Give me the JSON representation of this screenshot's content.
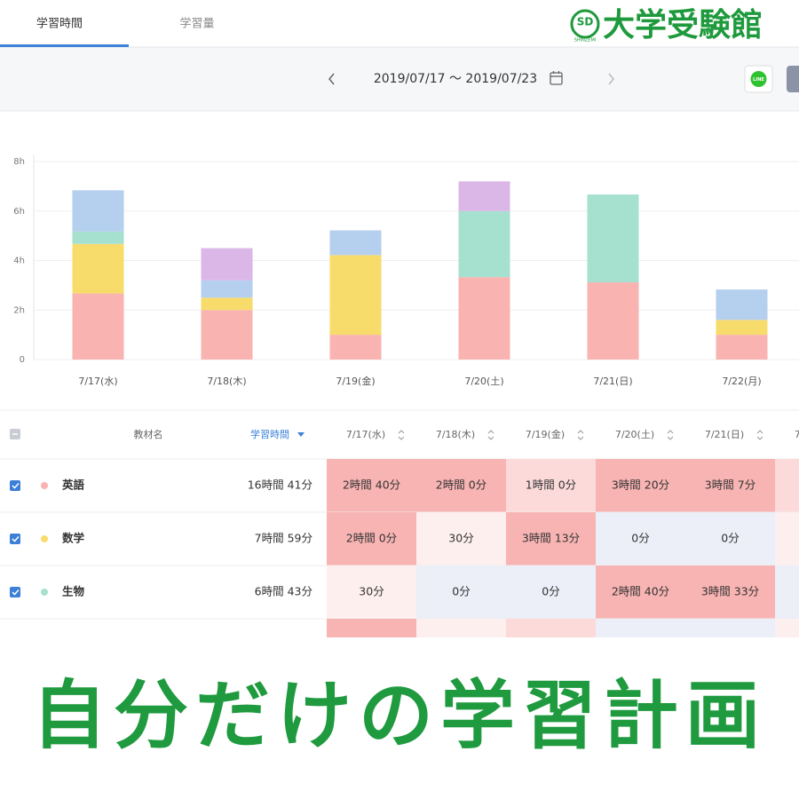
{
  "tabs": [
    "学習時間",
    "学習量"
  ],
  "logo": {
    "emblem": "SD",
    "emblem_sub": "SHINZEMI",
    "brand": "大学受験館"
  },
  "toolbar": {
    "date_range": "2019/07/17 〜 2019/07/23",
    "share_button": "LINE"
  },
  "chart_data": {
    "type": "bar",
    "stacked": true,
    "categories": [
      "7/17(水)",
      "7/18(木)",
      "7/19(金)",
      "7/20(土)",
      "7/21(日)",
      "7/22(月)"
    ],
    "series": [
      {
        "name": "英語",
        "color": "#f9b3b1",
        "values": [
          2.67,
          2.0,
          1.0,
          3.33,
          3.12,
          1.0
        ]
      },
      {
        "name": "数学",
        "color": "#f8dc6b",
        "values": [
          2.0,
          0.5,
          3.22,
          0,
          0,
          0.6
        ]
      },
      {
        "name": "生物",
        "color": "#a6e0ce",
        "values": [
          0.5,
          0,
          0,
          2.67,
          3.55,
          0
        ]
      },
      {
        "color": "#b5cfee",
        "values": [
          1.67,
          0.7,
          1.0,
          0,
          0,
          1.23
        ]
      },
      {
        "color": "#dbb7e8",
        "values": [
          0,
          1.3,
          0,
          1.2,
          0,
          0
        ]
      }
    ],
    "ylim": [
      0,
      8
    ],
    "yticks": [
      0,
      {
        "value": 2,
        "label": "2h"
      },
      {
        "value": 4,
        "label": "4h"
      },
      {
        "value": 6,
        "label": "6h"
      },
      {
        "value": 8,
        "label": "8h"
      }
    ],
    "grid": true
  },
  "table": {
    "headers": [
      "教材名",
      "学習時間"
    ],
    "rows": [
      {
        "total": "16時間 41分",
        "cells": [
          "2時間 40分",
          "2時間 0分",
          "1時間 0分",
          "3時間 20分",
          "3時間 7分"
        ]
      },
      {
        "total": "7時間 59分",
        "cells": [
          "2時間 0分",
          "30分",
          "3時間 13分",
          "0分",
          "0分"
        ]
      },
      {
        "total": "6時間 43分",
        "cells": [
          "30分",
          "0分",
          "0分",
          "2時間 40分",
          "3時間 33分"
        ]
      }
    ]
  },
  "banner": "自分だけの学習計画"
}
